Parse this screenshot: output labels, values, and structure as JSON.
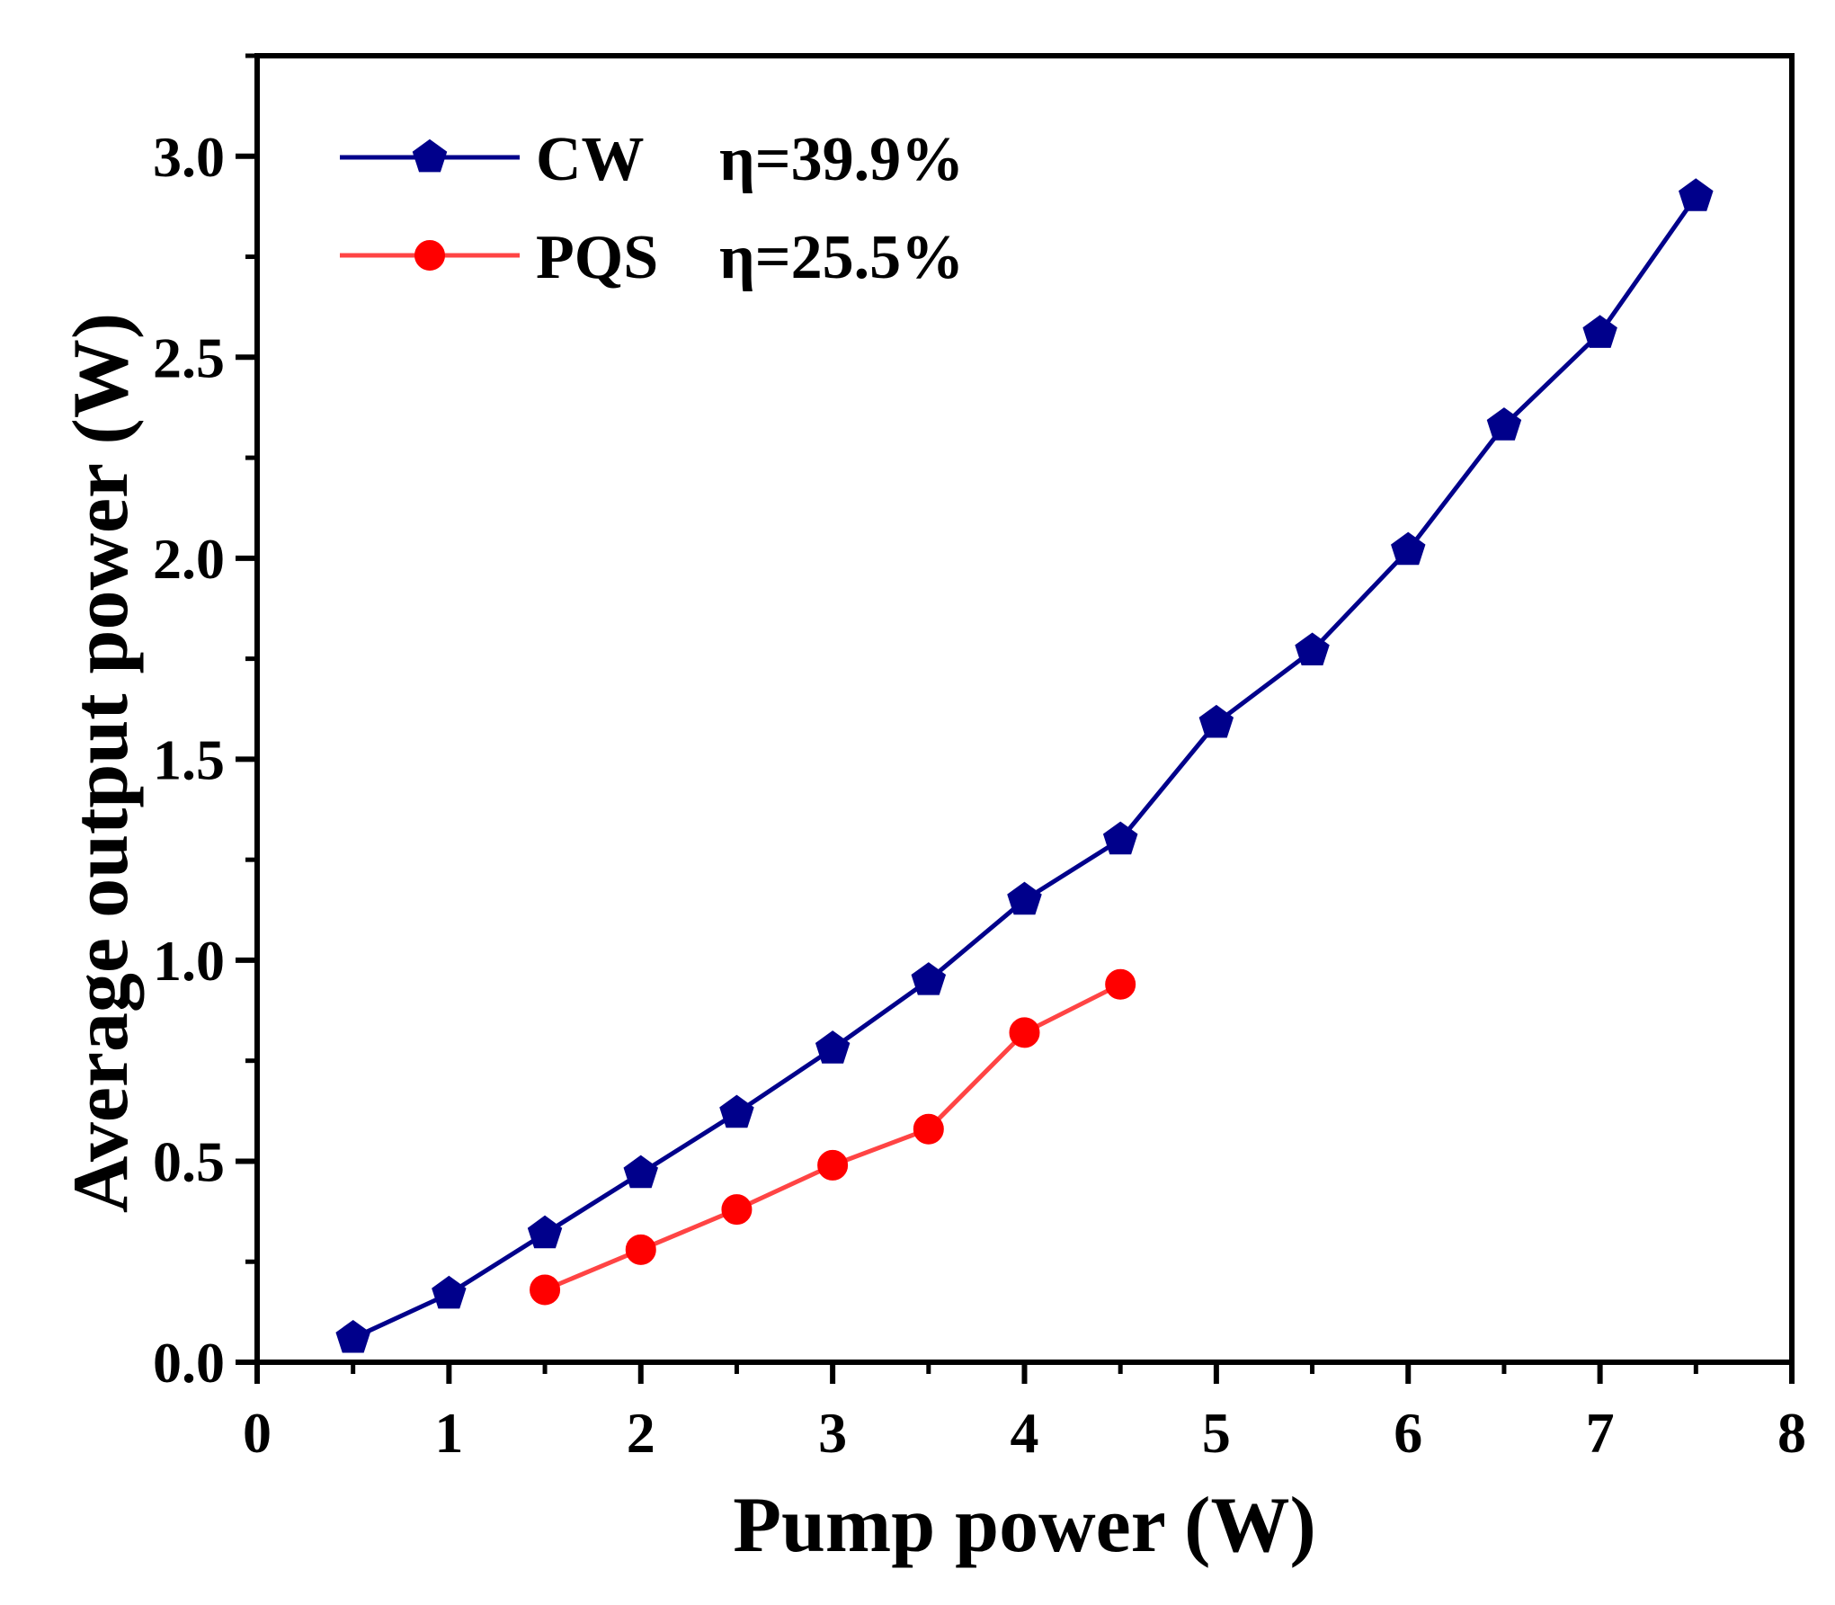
{
  "chart_data": {
    "type": "line",
    "xlabel": "Pump power (W)",
    "ylabel": "Average output power (W)",
    "xlim": [
      0,
      8
    ],
    "ylim": [
      0,
      3.25
    ],
    "xticks": [
      0,
      1,
      2,
      3,
      4,
      5,
      6,
      7,
      8
    ],
    "xtick_labels": [
      "0",
      "1",
      "2",
      "3",
      "4",
      "5",
      "6",
      "7",
      "8"
    ],
    "yticks": [
      0,
      0.5,
      1.0,
      1.5,
      2.0,
      2.5,
      3.0
    ],
    "ytick_labels": [
      "0.0",
      "0.5",
      "1.0",
      "1.5",
      "2.0",
      "2.5",
      "3.0"
    ],
    "grid": false,
    "legend_position": "top-left",
    "series": [
      {
        "name": "CW",
        "eta": "η=39.9%",
        "color": "#00008B",
        "marker": "pentagon",
        "x": [
          0.5,
          1.0,
          1.5,
          2.0,
          2.5,
          3.0,
          3.5,
          4.0,
          4.5,
          5.0,
          5.5,
          6.0,
          6.5,
          7.0,
          7.5
        ],
        "y": [
          0.06,
          0.17,
          0.32,
          0.47,
          0.62,
          0.78,
          0.95,
          1.15,
          1.3,
          1.59,
          1.77,
          2.02,
          2.33,
          2.56,
          2.9
        ]
      },
      {
        "name": "PQS",
        "eta": "η=25.5%",
        "color": "#FF0000",
        "line_color": "#FF4444",
        "marker": "circle",
        "x": [
          1.5,
          2.0,
          2.5,
          3.0,
          3.5,
          4.0,
          4.5
        ],
        "y": [
          0.18,
          0.28,
          0.38,
          0.49,
          0.58,
          0.82,
          0.94
        ]
      }
    ]
  }
}
